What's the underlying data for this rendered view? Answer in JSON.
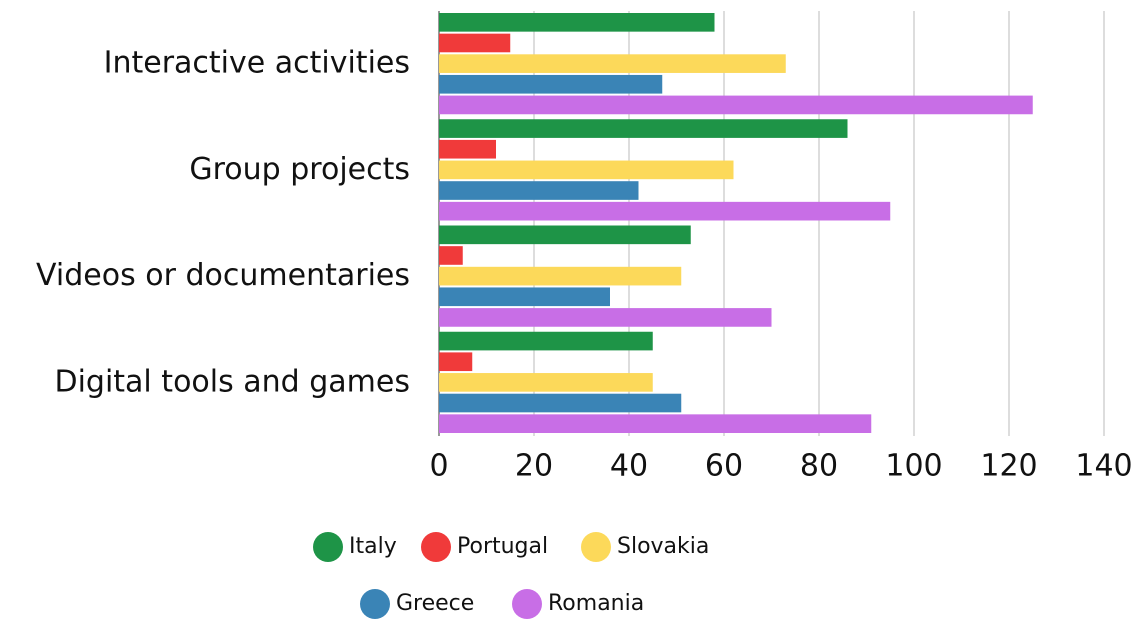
{
  "chart_data": {
    "type": "bar",
    "orientation": "horizontal",
    "categories": [
      "Interactive activities",
      "Group projects",
      "Videos or documentaries",
      "Digital tools and games"
    ],
    "series": [
      {
        "name": "Italy",
        "color": "#1e9447",
        "values": [
          58,
          86,
          53,
          45
        ]
      },
      {
        "name": "Portugal",
        "color": "#f03a3a",
        "values": [
          15,
          12,
          5,
          7
        ]
      },
      {
        "name": "Slovakia",
        "color": "#fcd95a",
        "values": [
          73,
          62,
          51,
          45
        ]
      },
      {
        "name": "Greece",
        "color": "#3a84b6",
        "values": [
          47,
          42,
          36,
          51
        ]
      },
      {
        "name": "Romania",
        "color": "#c86ee6",
        "values": [
          125,
          95,
          70,
          91
        ]
      }
    ],
    "xlim": [
      0,
      140
    ],
    "xticks": [
      0,
      20,
      40,
      60,
      80,
      100,
      120,
      140
    ],
    "grid": true
  }
}
